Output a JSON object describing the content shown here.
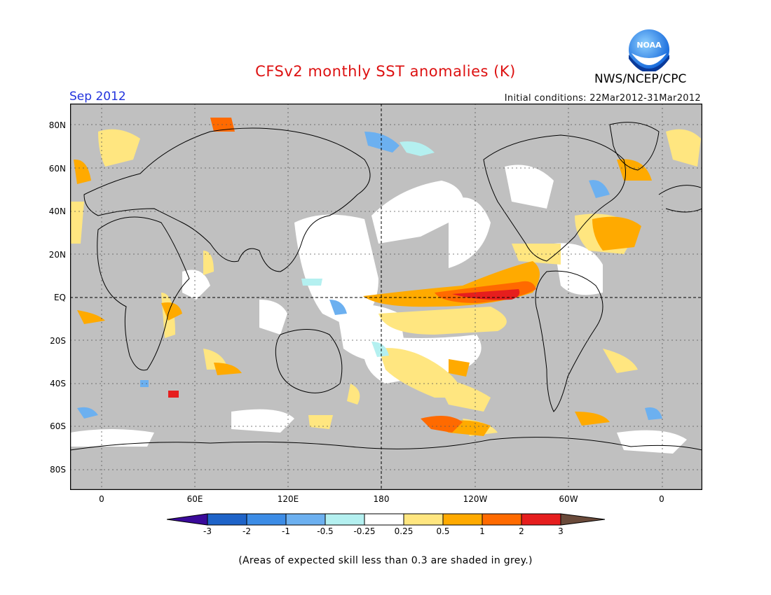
{
  "header": {
    "title": "CFSv2 monthly SST anomalies (K)",
    "month": "Sep 2012",
    "initial_conditions": "Initial conditions: 22Mar2012-31Mar2012",
    "agency": "NWS/NCEP/CPC",
    "logo_text": "NOAA"
  },
  "axes": {
    "lat_labels": [
      "80N",
      "60N",
      "40N",
      "20N",
      "EQ",
      "20S",
      "40S",
      "60S",
      "80S"
    ],
    "lon_labels": [
      "0",
      "60E",
      "120E",
      "180",
      "120W",
      "60W",
      "0"
    ]
  },
  "colorbar": {
    "labels": [
      "-3",
      "-2",
      "-1",
      "-0.5",
      "-0.25",
      "0.25",
      "0.5",
      "1",
      "2",
      "3"
    ],
    "colors": [
      "#3a0a9a",
      "#1e63c8",
      "#3c8ce6",
      "#6cb0f0",
      "#b4f0f0",
      "#ffffff",
      "#ffe680",
      "#ffaa00",
      "#ff6a00",
      "#e61e1e",
      "#a50000",
      "#6a4a3a"
    ]
  },
  "legend": {
    "grey_color": "#c0c0c0",
    "footnote": "(Areas of expected skill less than 0.3 are shaded in grey.)"
  }
}
